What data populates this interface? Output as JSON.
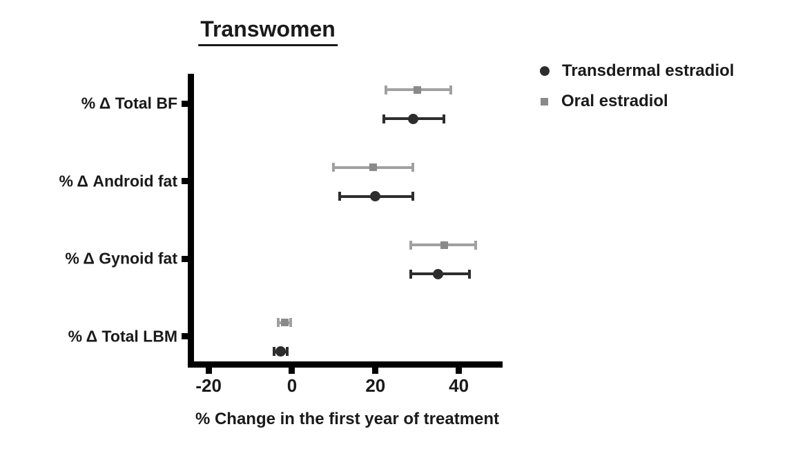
{
  "chart_data": {
    "type": "scatter",
    "subtype": "horizontal-dot-plot-with-error-bars",
    "title": "Transwomen",
    "xlabel": "% Change in the first year of treatment",
    "ylabel": "",
    "categories": [
      "% Δ Total BF",
      "% Δ Android fat",
      "% Δ Gynoid fat",
      "% Δ Total LBM"
    ],
    "x_ticks": [
      -20,
      0,
      20,
      40
    ],
    "xlim": [
      -25,
      50.5
    ],
    "grid": false,
    "legend_position": "top-right",
    "series": [
      {
        "name": "Transdermal estradiol",
        "marker": "circle",
        "marker_color": "#2d2d2d",
        "bar_color": "#2d2d2d",
        "values": [
          {
            "category": "% Δ Total BF",
            "mean": 29,
            "low": 22,
            "high": 36.5
          },
          {
            "category": "% Δ Android fat",
            "mean": 20,
            "low": 11.5,
            "high": 29
          },
          {
            "category": "% Δ Gynoid fat",
            "mean": 35,
            "low": 28.5,
            "high": 42.5
          },
          {
            "category": "% Δ Total LBM",
            "mean": -2.8,
            "low": -4.3,
            "high": -1.2
          }
        ]
      },
      {
        "name": "Oral estradiol",
        "marker": "square",
        "marker_color": "#8a8a8a",
        "bar_color": "#a0a0a0",
        "values": [
          {
            "category": "% Δ Total BF",
            "mean": 30,
            "low": 22.5,
            "high": 38
          },
          {
            "category": "% Δ Android fat",
            "mean": 19.5,
            "low": 10,
            "high": 29
          },
          {
            "category": "% Δ Gynoid fat",
            "mean": 36.5,
            "low": 28.5,
            "high": 44
          },
          {
            "category": "% Δ Total LBM",
            "mean": -1.8,
            "low": -3.3,
            "high": -0.3
          }
        ]
      }
    ],
    "axis_color": "#000000"
  }
}
